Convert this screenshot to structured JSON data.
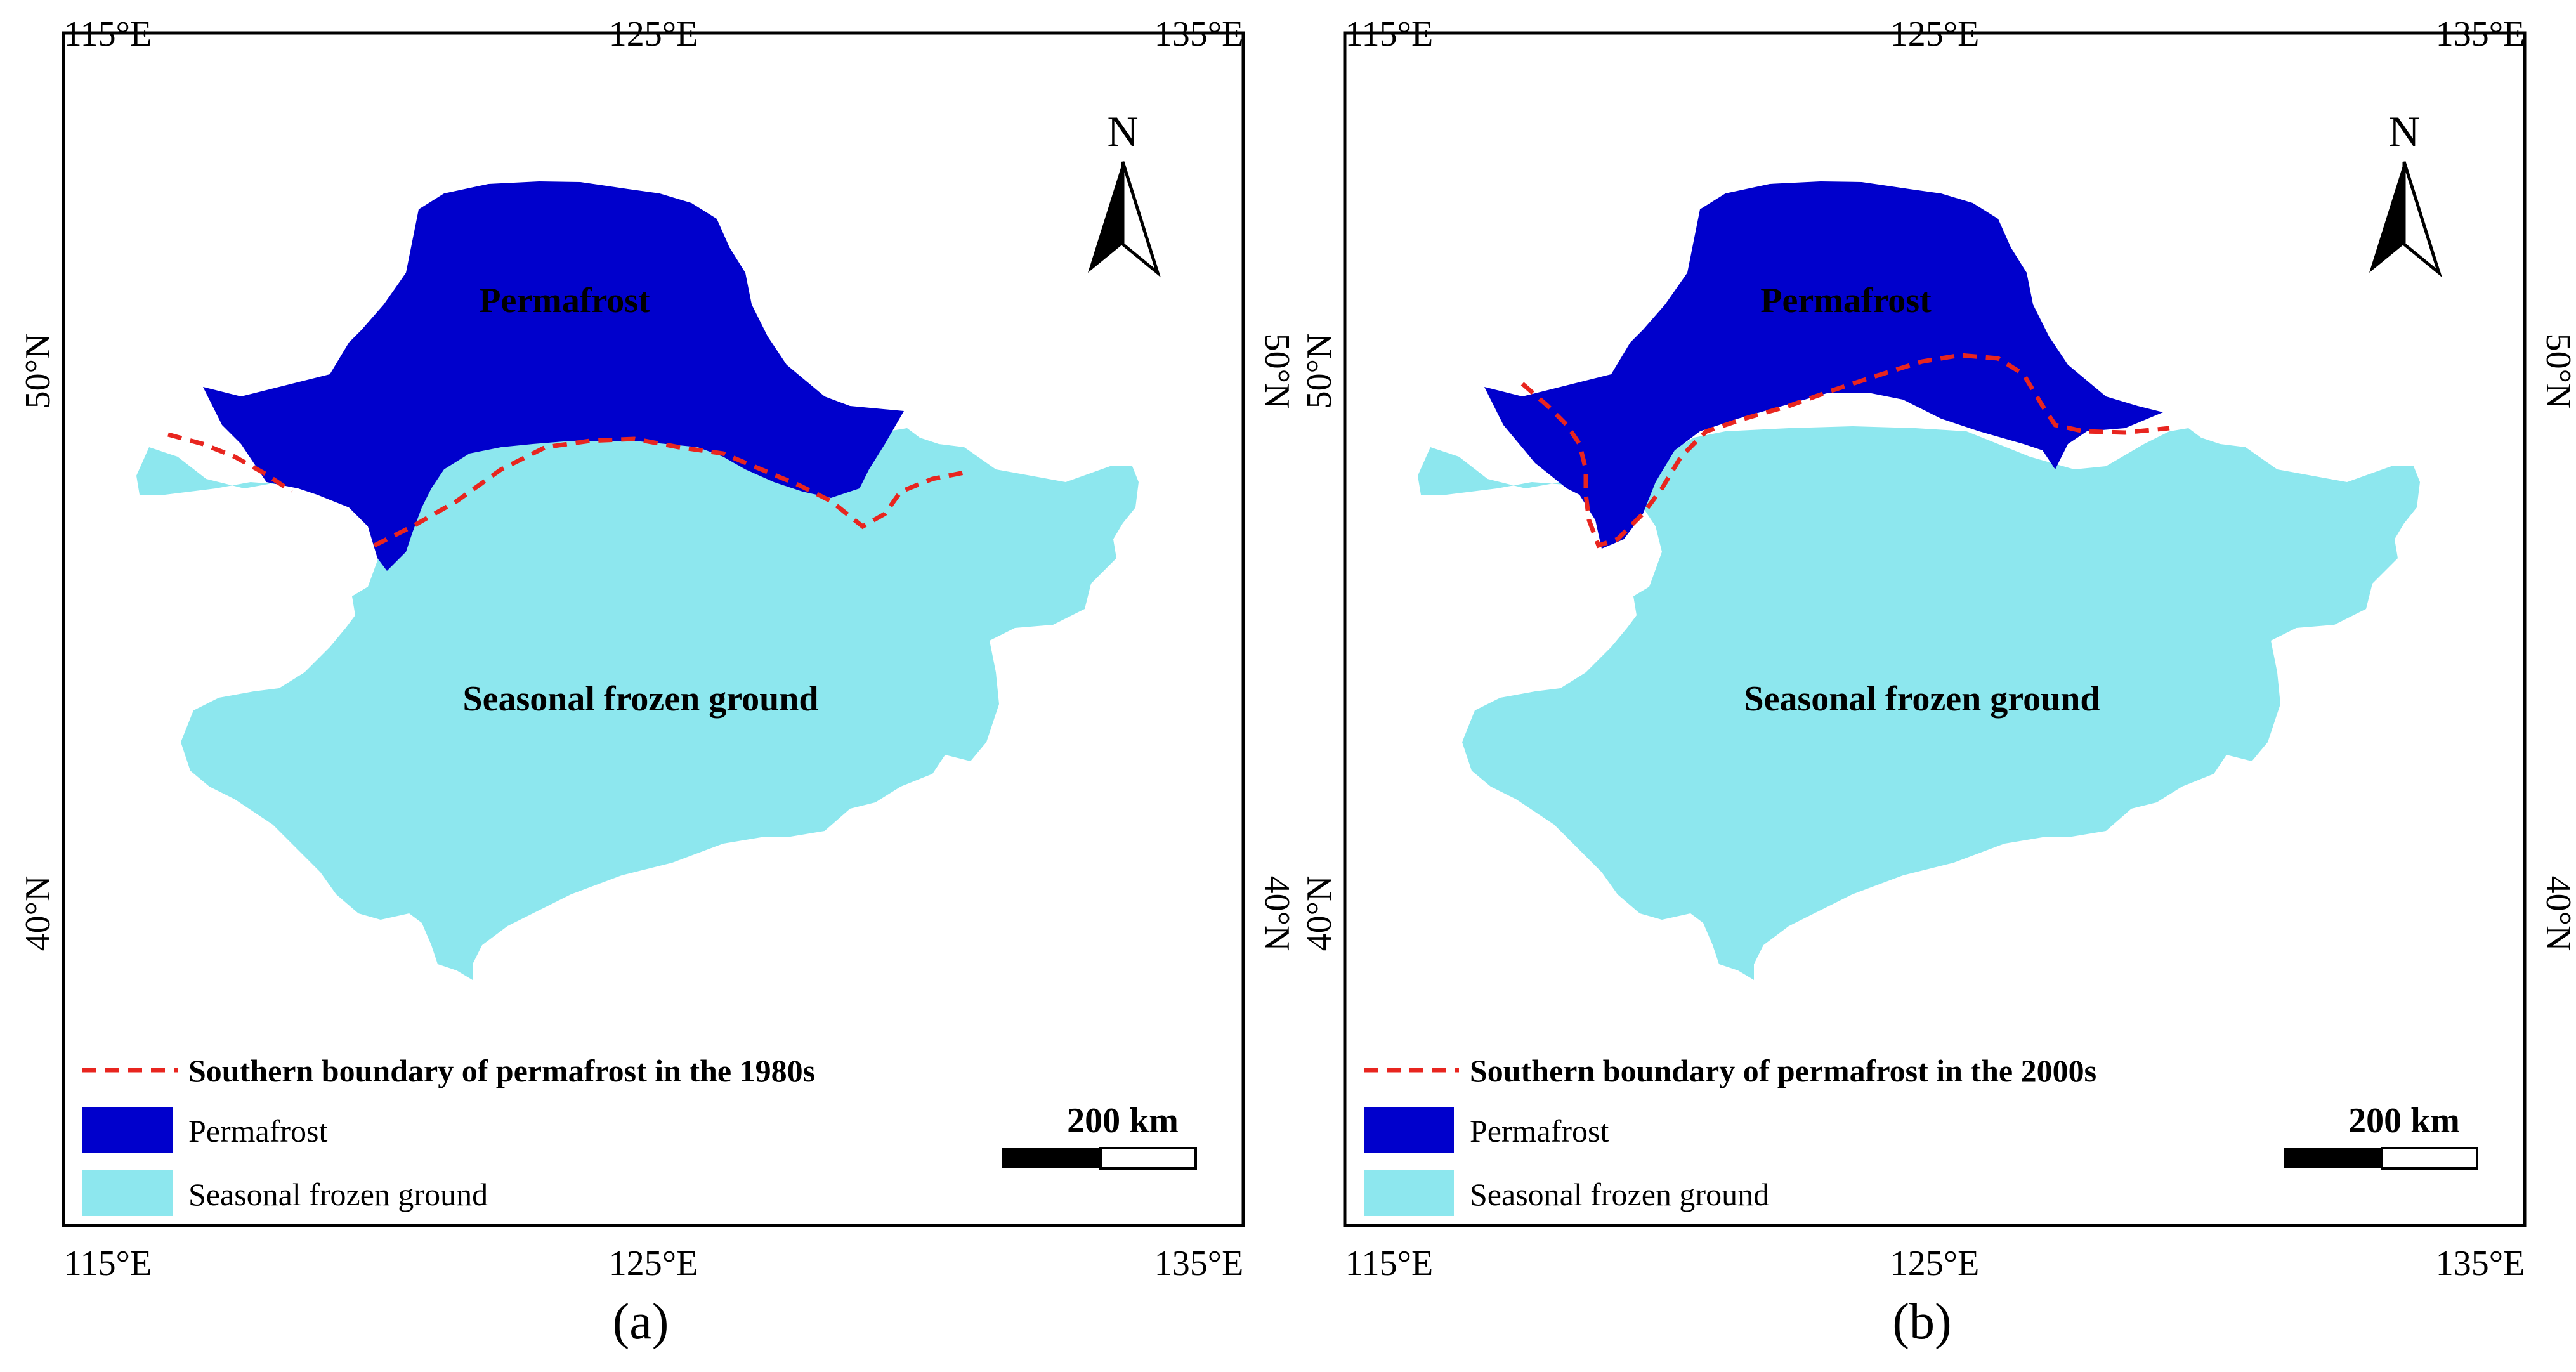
{
  "colors": {
    "permafrost": "#0000CC",
    "seasonal": "#8DE7EE",
    "boundary": "#E8251F",
    "frame": "#000000"
  },
  "compass": {
    "north_label": "N",
    "icon": "north-arrow-icon"
  },
  "scale_bar": {
    "label": "200 km"
  },
  "panels": [
    {
      "caption": "(a)",
      "lon_ticks": [
        "115°E",
        "125°E",
        "135°E"
      ],
      "lat_ticks": [
        "50°N",
        "40°N"
      ],
      "map_labels": {
        "permafrost": "Permafrost",
        "seasonal": "Seasonal frozen ground"
      },
      "legend": {
        "boundary": "Southern boundary of permafrost in the 1980s",
        "permafrost": "Permafrost",
        "seasonal": "Seasonal frozen ground"
      }
    },
    {
      "caption": "(b)",
      "lon_ticks": [
        "115°E",
        "125°E",
        "135°E"
      ],
      "lat_ticks": [
        "50°N",
        "40°N"
      ],
      "map_labels": {
        "permafrost": "Permafrost",
        "seasonal": "Seasonal frozen ground"
      },
      "legend": {
        "boundary": "Southern boundary of permafrost in the 2000s",
        "permafrost": "Permafrost",
        "seasonal": "Seasonal frozen ground"
      }
    }
  ]
}
